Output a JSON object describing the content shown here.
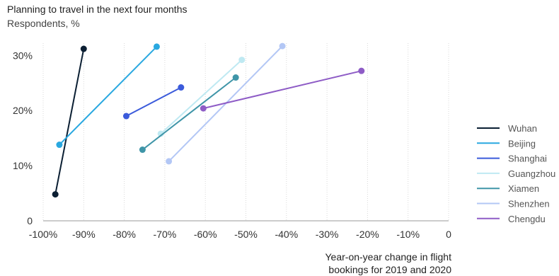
{
  "chart_data": {
    "type": "line",
    "title": "Planning to travel in the next four months",
    "subtitle": "Respondents, %",
    "xlabel_lines": [
      "Year-on-year change in flight",
      "bookings for 2019 and 2020"
    ],
    "xlim": [
      -100,
      0
    ],
    "ylim": [
      0,
      33
    ],
    "x_ticks": [
      {
        "value": -100,
        "label": "-100%"
      },
      {
        "value": -90,
        "label": "-90%"
      },
      {
        "value": -80,
        "label": "-80%"
      },
      {
        "value": -70,
        "label": "-70%"
      },
      {
        "value": -60,
        "label": "-60%"
      },
      {
        "value": -50,
        "label": "-50%"
      },
      {
        "value": -40,
        "label": "-40%"
      },
      {
        "value": -30,
        "label": "-30%"
      },
      {
        "value": -20,
        "label": "-20%"
      },
      {
        "value": -10,
        "label": "-10%"
      },
      {
        "value": 0,
        "label": "0"
      }
    ],
    "y_ticks": [
      {
        "value": 0,
        "label": "0"
      },
      {
        "value": 10,
        "label": "10%"
      },
      {
        "value": 20,
        "label": "20%"
      },
      {
        "value": 30,
        "label": "30%"
      }
    ],
    "grid": "vertical dotted",
    "legend_position": "right",
    "series": [
      {
        "name": "Wuhan",
        "color": "#0b1f33",
        "points": [
          [
            -97,
            4.8
          ],
          [
            -90,
            31.2
          ]
        ]
      },
      {
        "name": "Beijing",
        "color": "#29a8e0",
        "points": [
          [
            -96,
            13.8
          ],
          [
            -72,
            31.6
          ]
        ]
      },
      {
        "name": "Shanghai",
        "color": "#3b5bdb",
        "points": [
          [
            -79.5,
            19.0
          ],
          [
            -66,
            24.2
          ]
        ]
      },
      {
        "name": "Guangzhou",
        "color": "#bfe9f2",
        "points": [
          [
            -71,
            15.8
          ],
          [
            -51,
            29.2
          ]
        ]
      },
      {
        "name": "Xiamen",
        "color": "#3f95a8",
        "points": [
          [
            -75.5,
            12.9
          ],
          [
            -52.5,
            26.0
          ]
        ]
      },
      {
        "name": "Shenzhen",
        "color": "#b3c7f5",
        "points": [
          [
            -69,
            10.8
          ],
          [
            -41,
            31.7
          ]
        ]
      },
      {
        "name": "Chengdu",
        "color": "#8e5cc6",
        "points": [
          [
            -60.5,
            20.4
          ],
          [
            -21.5,
            27.2
          ]
        ]
      }
    ]
  }
}
